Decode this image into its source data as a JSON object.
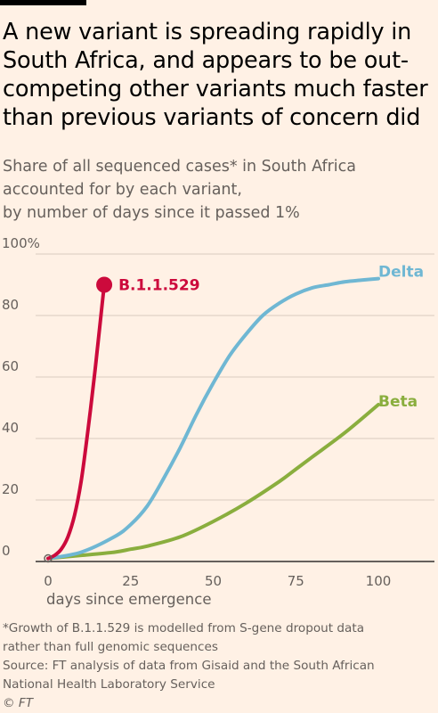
{
  "title": "A new variant is spreading rapidly in South Africa, and appears to be out-competing other variants much faster than previous variants of concern did",
  "subtitle_lines": [
    "Share of all sequenced cases* in South Africa",
    "accounted for by each variant,",
    "by number of days since it passed 1%"
  ],
  "footnotes": [
    "*Growth of B.1.1.529 is modelled from S-gene dropout data",
    "rather than full genomic sequences",
    "Source: FT analysis of data from Gisaid and the South African",
    "National Health Laboratory Service"
  ],
  "copyright": "© FT",
  "colors": {
    "background": "#FFF1E5",
    "b11529": "#CC0A3C",
    "delta": "#6FB7D3",
    "beta": "#8AAE3E",
    "grid": "#D9CCC0",
    "axis": "#33302E"
  },
  "chart_data": {
    "type": "line",
    "title": "",
    "xlabel": "days since emergence",
    "ylabel": "",
    "xlim": [
      0,
      100
    ],
    "ylim": [
      0,
      100
    ],
    "x_ticks": [
      0,
      25,
      50,
      75,
      100
    ],
    "y_ticks": [
      0,
      20,
      40,
      60,
      80,
      100
    ],
    "y_tick_labels": [
      "0",
      "20",
      "40",
      "60",
      "80",
      "100%"
    ],
    "grid": true,
    "series": [
      {
        "name": "B.1.1.529",
        "color": "#CC0A3C",
        "endpoint_marker": true,
        "x": [
          0,
          2,
          4,
          6,
          8,
          10,
          12,
          14,
          15,
          16,
          17
        ],
        "y": [
          1,
          2,
          4,
          8,
          15,
          26,
          42,
          60,
          70,
          80,
          90
        ]
      },
      {
        "name": "Delta",
        "color": "#6FB7D3",
        "endpoint_marker": false,
        "x": [
          0,
          10,
          20,
          25,
          30,
          35,
          40,
          45,
          50,
          55,
          60,
          65,
          70,
          75,
          80,
          85,
          90,
          95,
          100
        ],
        "y": [
          1,
          3,
          8,
          12,
          18,
          27,
          37,
          48,
          58,
          67,
          74,
          80,
          84,
          87,
          89,
          90,
          91,
          91.5,
          92
        ]
      },
      {
        "name": "Beta",
        "color": "#8AAE3E",
        "endpoint_marker": false,
        "x": [
          0,
          10,
          20,
          25,
          30,
          40,
          50,
          60,
          70,
          75,
          80,
          90,
          100
        ],
        "y": [
          1,
          2,
          3,
          4,
          5,
          8,
          13,
          19,
          26,
          30,
          34,
          42,
          51
        ]
      }
    ]
  }
}
